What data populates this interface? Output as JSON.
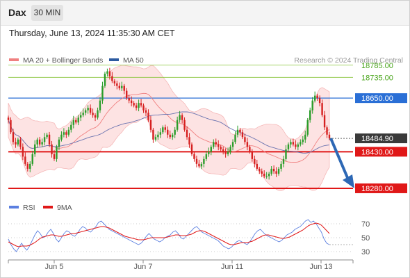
{
  "header": {
    "symbol": "Dax",
    "timeframe": "30 MIN",
    "datetime": "Thursday, June 13, 2024 11:35:30 AM CET"
  },
  "legend": [
    {
      "label": "MA 20 + Bollinger Bands",
      "color": "#f08080"
    },
    {
      "label": "MA 50",
      "color": "#2c5aa0"
    }
  ],
  "copyright": "Research © 2024 Trading Central",
  "colors": {
    "up": "#2a9d2a",
    "down": "#d62020",
    "band_fill": "#fde3e3",
    "ma20": "#f08080",
    "ma50": "#6b74b0",
    "resistance": "#2a6fd6",
    "support": "#e01818",
    "target": "#8cc63f",
    "arrow": "#2d68b5",
    "rsi": "#5b7fe0",
    "rsi_ma": "#e01818"
  },
  "chart_data": [
    {
      "type": "line",
      "title": "",
      "x_labels": [
        "Jun 5",
        "Jun 7",
        "Jun 11",
        "Jun 13"
      ],
      "y_range": [
        18220,
        18830
      ],
      "levels": [
        {
          "value": 18785.0,
          "label": "18785.00",
          "kind": "target"
        },
        {
          "value": 18735.0,
          "label": "18735.00",
          "kind": "target"
        },
        {
          "value": 18650.0,
          "label": "18650.00",
          "kind": "resistance"
        },
        {
          "value": 18484.9,
          "label": "18484.90",
          "kind": "last"
        },
        {
          "value": 18430.0,
          "label": "18430.00",
          "kind": "support"
        },
        {
          "value": 18280.0,
          "label": "18280.00",
          "kind": "support"
        }
      ],
      "close_series": [
        18560,
        18510,
        18470,
        18460,
        18480,
        18450,
        18410,
        18380,
        18360,
        18380,
        18420,
        18460,
        18480,
        18460,
        18470,
        18490,
        18500,
        18460,
        18420,
        18400,
        18450,
        18480,
        18500,
        18510,
        18500,
        18520,
        18540,
        18560,
        18550,
        18570,
        18580,
        18590,
        18600,
        18610,
        18590,
        18580,
        18570,
        18600,
        18640,
        18700,
        18750,
        18760,
        18740,
        18720,
        18710,
        18700,
        18690,
        18700,
        18680,
        18650,
        18640,
        18630,
        18620,
        18610,
        18630,
        18620,
        18600,
        18590,
        18560,
        18520,
        18480,
        18490,
        18500,
        18510,
        18530,
        18520,
        18500,
        18490,
        18500,
        18520,
        18560,
        18580,
        18560,
        18520,
        18490,
        18460,
        18420,
        18400,
        18380,
        18370,
        18380,
        18400,
        18420,
        18430,
        18450,
        18470,
        18460,
        18450,
        18440,
        18430,
        18420,
        18430,
        18450,
        18470,
        18500,
        18520,
        18510,
        18490,
        18470,
        18450,
        18430,
        18400,
        18380,
        18360,
        18350,
        18340,
        18330,
        18330,
        18340,
        18360,
        18350,
        18340,
        18360,
        18380,
        18400,
        18440,
        18460,
        18470,
        18460,
        18450,
        18460,
        18470,
        18480,
        18500,
        18560,
        18600,
        18640,
        18660,
        18650,
        18630,
        18580,
        18530,
        18500,
        18485
      ],
      "annotation": "projected move down toward 18280.00"
    },
    {
      "type": "line",
      "title": "",
      "series": [
        {
          "name": "RSI"
        },
        {
          "name": "9MA"
        }
      ],
      "y_ticks": [
        30,
        50,
        70
      ],
      "y_range": [
        20,
        80
      ],
      "rsi_values": [
        48,
        40,
        34,
        30,
        36,
        42,
        36,
        32,
        38,
        46,
        54,
        60,
        56,
        50,
        52,
        58,
        62,
        56,
        48,
        44,
        50,
        56,
        60,
        58,
        54,
        52,
        56,
        62,
        66,
        64,
        60,
        58,
        62,
        66,
        72,
        74,
        70,
        66,
        62,
        60,
        58,
        56,
        54,
        52,
        50,
        48,
        46,
        44,
        42,
        40,
        42,
        46,
        52,
        56,
        52,
        48,
        46,
        44,
        46,
        50,
        52,
        54,
        58,
        60,
        56,
        50,
        48,
        52,
        56,
        60,
        64,
        66,
        62,
        58,
        56,
        54,
        52,
        50,
        48,
        46,
        42,
        38,
        36,
        34,
        36,
        40,
        44,
        46,
        44,
        42,
        40,
        44,
        50,
        56,
        60,
        62,
        58,
        54,
        52,
        50,
        48,
        46,
        44,
        46,
        50,
        54,
        56,
        58,
        62,
        64,
        66,
        70,
        74,
        76,
        72,
        74,
        70,
        64,
        58,
        48,
        42,
        40
      ],
      "ma_values": [
        44,
        42,
        40,
        38,
        37,
        38,
        38,
        38,
        39,
        41,
        43,
        46,
        49,
        51,
        52,
        53,
        54,
        54,
        53,
        52,
        52,
        53,
        54,
        55,
        56,
        56,
        57,
        58,
        59,
        60,
        61,
        62,
        63,
        64,
        65,
        66,
        66,
        65,
        64,
        62,
        60,
        58,
        56,
        54,
        52,
        51,
        50,
        49,
        48,
        47,
        47,
        47,
        48,
        49,
        50,
        50,
        50,
        50,
        50,
        50,
        51,
        52,
        53,
        54,
        54,
        53,
        53,
        53,
        54,
        55,
        57,
        59,
        60,
        60,
        59,
        57,
        55,
        53,
        51,
        49,
        47,
        45,
        43,
        41,
        40,
        40,
        41,
        42,
        43,
        43,
        43,
        44,
        45,
        47,
        49,
        51,
        53,
        54,
        54,
        53,
        52,
        51,
        50,
        49,
        49,
        50,
        51,
        53,
        55,
        57,
        59,
        61,
        64,
        67,
        69,
        70,
        71,
        70,
        68,
        64,
        60,
        56
      ]
    }
  ]
}
